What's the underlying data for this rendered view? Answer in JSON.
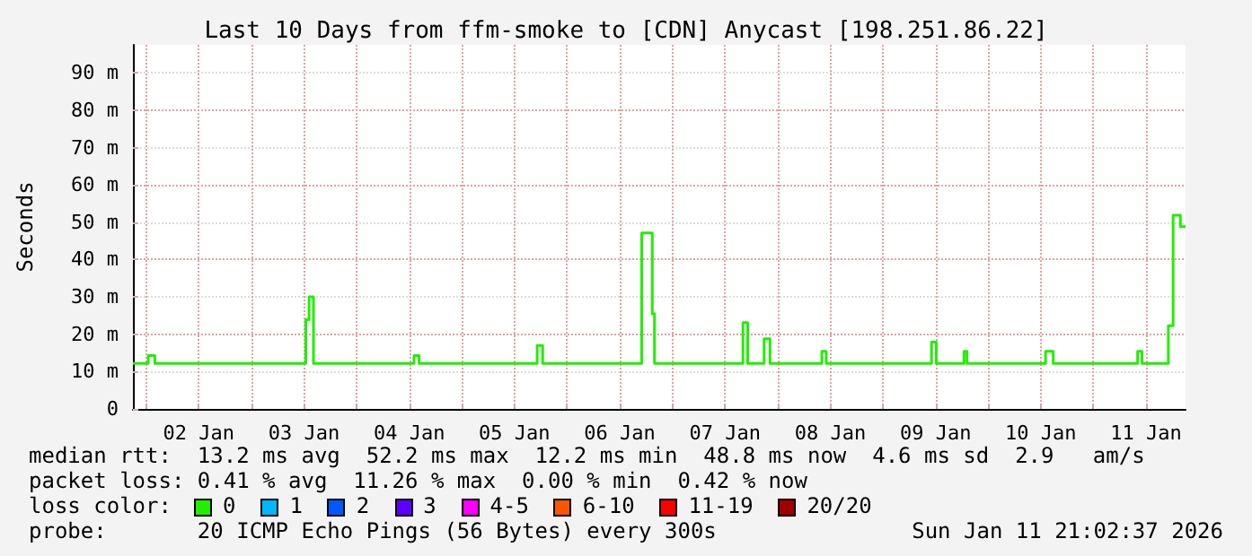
{
  "chart_data": {
    "type": "step",
    "title": "Last 10 Days from ffm-smoke to [CDN] Anycast [198.251.86.22]",
    "ylabel": "Seconds",
    "x": [
      "2026-01-01T21:00",
      "2026-01-02T00:30",
      "2026-01-02T02:00",
      "2026-01-03T12:25",
      "2026-01-03T13:10",
      "2026-01-03T14:10",
      "2026-01-04T13:05",
      "2026-01-04T14:15",
      "2026-01-05T17:10",
      "2026-01-05T18:25",
      "2026-01-06T17:00",
      "2026-01-06T19:25",
      "2026-01-06T19:55",
      "2026-01-07T16:05",
      "2026-01-07T17:10",
      "2026-01-07T20:55",
      "2026-01-07T22:15",
      "2026-01-08T10:05",
      "2026-01-08T11:05",
      "2026-01-09T11:05",
      "2026-01-09T12:10",
      "2026-01-09T18:30",
      "2026-01-09T19:10",
      "2026-01-10T13:05",
      "2026-01-10T14:50",
      "2026-01-11T10:05",
      "2026-01-11T11:05",
      "2026-01-11T17:05",
      "2026-01-11T18:10",
      "2026-01-11T19:50",
      "2026-01-11T21:00"
    ],
    "series": [
      {
        "color": "#22ee00",
        "values": [
          12.2,
          14.3,
          12.2,
          23.9,
          30.0,
          12.2,
          14.3,
          12.2,
          17.0,
          12.2,
          47.1,
          25.5,
          12.2,
          23.1,
          12.2,
          18.8,
          12.2,
          15.4,
          12.2,
          17.9,
          12.2,
          15.4,
          12.2,
          15.4,
          12.2,
          15.4,
          12.2,
          22.3,
          51.9,
          48.8,
          48.8
        ]
      }
    ],
    "xlim": [
      "2026-01-01T21:00",
      "2026-01-11T21:00"
    ],
    "xticks": [
      {
        "value": "2026-01-02T00:00",
        "label": null
      },
      {
        "value": "2026-01-02T12:00",
        "label": "02 Jan"
      },
      {
        "value": "2026-01-03T00:00",
        "label": null
      },
      {
        "value": "2026-01-03T12:00",
        "label": "03 Jan"
      },
      {
        "value": "2026-01-04T00:00",
        "label": null
      },
      {
        "value": "2026-01-04T12:00",
        "label": "04 Jan"
      },
      {
        "value": "2026-01-05T00:00",
        "label": null
      },
      {
        "value": "2026-01-05T12:00",
        "label": "05 Jan"
      },
      {
        "value": "2026-01-06T00:00",
        "label": null
      },
      {
        "value": "2026-01-06T12:00",
        "label": "06 Jan"
      },
      {
        "value": "2026-01-07T00:00",
        "label": null
      },
      {
        "value": "2026-01-07T12:00",
        "label": "07 Jan"
      },
      {
        "value": "2026-01-08T00:00",
        "label": null
      },
      {
        "value": "2026-01-08T12:00",
        "label": "08 Jan"
      },
      {
        "value": "2026-01-09T00:00",
        "label": null
      },
      {
        "value": "2026-01-09T12:00",
        "label": "09 Jan"
      },
      {
        "value": "2026-01-10T00:00",
        "label": null
      },
      {
        "value": "2026-01-10T12:00",
        "label": "10 Jan"
      },
      {
        "value": "2026-01-11T00:00",
        "label": null
      },
      {
        "value": "2026-01-11T12:00",
        "label": "11 Jan"
      }
    ],
    "ylim": [
      0,
      97.5
    ],
    "yticks": [
      0,
      {
        "value": 10,
        "label": "10 m"
      },
      {
        "value": 20,
        "label": "20 m"
      },
      {
        "value": 30,
        "label": "30 m"
      },
      {
        "value": 40,
        "label": "40 m"
      },
      {
        "value": 50,
        "label": "50 m"
      },
      {
        "value": 60,
        "label": "60 m"
      },
      {
        "value": 70,
        "label": "70 m"
      },
      {
        "value": 80,
        "label": "80 m"
      },
      {
        "value": 90,
        "label": "90 m"
      }
    ],
    "grid": true,
    "marker": "none",
    "line_style": "solid",
    "annotations": [
      "median rtt:  13.2 ms avg  52.2 ms max  12.2 ms min  48.8 ms now  4.6 ms sd  2.9   am/s",
      "packet loss: 0.41 % avg  11.26 % max  0.00 % min  0.42 % now",
      "loss color:",
      "0",
      "1",
      "2",
      "3",
      "4-5",
      "6-10",
      "11-19",
      "20/20",
      "probe:       20 ICMP Echo Pings (56 Bytes) every 300s",
      "Sun Jan 11 21:02:37 2026"
    ]
  }
}
